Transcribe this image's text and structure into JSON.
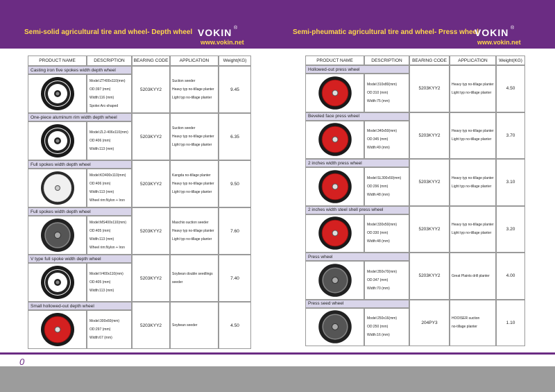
{
  "left": {
    "title": "Semi-solid agricultural tire and wheel- Depth wheel",
    "brand": "VOKIN",
    "reg": "®",
    "website": "www.vokin.net",
    "columns": [
      "PRODUCT NAME",
      "DESCRIPTION",
      "BEARING CODE",
      "APPLICATION",
      "Weight(KG)"
    ],
    "sections": [
      {
        "name": "Casting iron five spokes width depth wheel",
        "description": [
          "Model:ZT400x110(mm)",
          "OD:397 (mm)",
          "Width:116 (mm)",
          "Spoke:Arc-shaped"
        ],
        "bearing": "5203KYY2",
        "application": [
          "Suction seeder",
          "Heavy typ no-tillage planter",
          "Light typ no-tillage planter"
        ],
        "weight": "9.45"
      },
      {
        "name": "One-piece aluminum rim width depth wheel",
        "description": [
          "Model:ZL2-406x110(mm)",
          "OD:406 (mm)",
          "Width:113 (mm)"
        ],
        "bearing": "5203KYY2",
        "application": [
          "Suction seeder",
          "Heavy typ no-tillage planter",
          "Light typ no-tillage planter"
        ],
        "weight": "6.35"
      },
      {
        "name": "Full spokes width depth wheel",
        "description": [
          "Model:KD400x110(mm)",
          "OD:406 (mm)",
          "Width:113 (mm)",
          "Wheel rim:Nylon + Iron"
        ],
        "bearing": "5203KYY2",
        "application": [
          "Kangda no-tillage planter",
          "Heavy typ no-tillage planter",
          "Light typ no-tillage planter"
        ],
        "weight": "9.50"
      },
      {
        "name": "Full spokes width depth wheel",
        "description": [
          "Model:MS400x110(mm)",
          "OD:405 (mm)",
          "Width:113 (mm)",
          "Wheel rim:Nylon + Iron"
        ],
        "bearing": "5203KYY2",
        "application": [
          "Maschio suction seeder",
          "Heavy typ no-tillage planter",
          "Light typ no-tillage planter"
        ],
        "weight": "7.60"
      },
      {
        "name": "V type full spoke width depth wheel",
        "description": [
          "Model:V400x110(mm)",
          "OD:405 (mm)",
          "Width:113 (mm)"
        ],
        "bearing": "5203KYY2",
        "application": [
          "Soybean double seedlings",
          "seeder"
        ],
        "weight": "7.40"
      },
      {
        "name": "Small hollowed-out depth wheel",
        "description": [
          "Model:300x60(mm)",
          "OD:297 (mm)",
          "Width:67 (mm)"
        ],
        "bearing": "5203KYY2",
        "application": [
          "Soybean seeder"
        ],
        "weight": "4.50"
      }
    ]
  },
  "right": {
    "title": "Semi-pheumatic agricultural tire and wheel-  Press wheel",
    "brand": "VOKIN",
    "reg": "®",
    "website": "www.vokin.net",
    "columns": [
      "PRODUCT NAME",
      "DESCRIPTION",
      "BEARING CODE",
      "APPLICATION",
      "Weight(KG)"
    ],
    "sections": [
      {
        "name": "Hollowed-out press wheel",
        "description": [
          "Model:310x80(mm)",
          "OD:310 (mm)",
          "Width:75 (mm)"
        ],
        "bearing": "5203KYY2",
        "application": [
          "Heavy typ no-tillage planter",
          "Light typ no-tillage planter"
        ],
        "weight": "4.50"
      },
      {
        "name": "Beveled face press wheel",
        "description": [
          "Model:340x50(mm)",
          "OD:345 (mm)",
          "Width:49 (mm)"
        ],
        "bearing": "5203KYY2",
        "application": [
          "Heavy typ no-tillage planter",
          "Light typ no-tillage planter"
        ],
        "weight": "3.70"
      },
      {
        "name": "2 inches width press wheel",
        "description": [
          "Model:SL300x50(mm)",
          "OD:296 (mm)",
          "Width:48 (mm)"
        ],
        "bearing": "5203KYY2",
        "application": [
          "Heavy typ no-tillage planter",
          "Light typ no-tillage planter"
        ],
        "weight": "3.10"
      },
      {
        "name": "2 inches width steel shell press wheel",
        "description": [
          "Model:330x50(mm)",
          "OD:330 (mm)",
          "Width:48 (mm)"
        ],
        "bearing": "5203KYY2",
        "application": [
          "Heavy typ no-tillage planter",
          "Light typ no-tillage planter"
        ],
        "weight": "3.20"
      },
      {
        "name": "Press wheel",
        "description": [
          "Model:350x70(mm)",
          "OD:347 (mm)",
          "Width:70 (mm)"
        ],
        "bearing": "5203KYY2",
        "application": [
          "Great Plaints drill planter"
        ],
        "weight": "4.00"
      },
      {
        "name": "Press seed wheel",
        "description": [
          "Model:250x16(mm)",
          "OD:250 (mm)",
          "Width:16 (mm)"
        ],
        "bearing": "204PY3",
        "application": [
          "HOOISER suction",
          "no-tillage planter"
        ],
        "weight": "1.10"
      }
    ]
  },
  "footer": {
    "page": "0"
  }
}
